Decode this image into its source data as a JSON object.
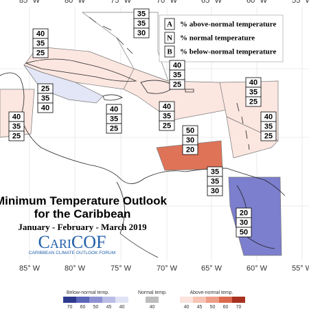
{
  "map": {
    "lon_labels": [
      "85° W",
      "80° W",
      "75° W",
      "70° W",
      "65° W",
      "60° W",
      "55° W"
    ],
    "legend": [
      {
        "key": "A",
        "label": "% above-normal temperature"
      },
      {
        "key": "N",
        "label": "% normal temperature"
      },
      {
        "key": "B",
        "label": "% below-normal temperature"
      }
    ],
    "regions": [
      {
        "values": [
          40,
          35,
          25
        ]
      },
      {
        "values": [
          35,
          35,
          30
        ]
      },
      {
        "values": [
          40,
          35,
          25
        ]
      },
      {
        "values": [
          40,
          35,
          25
        ]
      },
      {
        "values": [
          25,
          35,
          40
        ]
      },
      {
        "values": [
          40,
          35,
          25
        ]
      },
      {
        "values": [
          40,
          35,
          25
        ]
      },
      {
        "values": [
          40,
          35,
          25
        ]
      },
      {
        "values": [
          40,
          35,
          25
        ]
      },
      {
        "values": [
          50,
          30,
          20
        ]
      },
      {
        "values": [
          35,
          35,
          30
        ]
      },
      {
        "values": [
          20,
          30,
          50
        ]
      }
    ],
    "title": {
      "line1": "Minimum Temperature Outlook",
      "line2": "for the Caribbean",
      "period": "January - February - March 2019"
    },
    "logo": {
      "name": "CariCOF",
      "tagline": "CARIBBEAN CLIMATE OUTLOOK FORUM"
    },
    "colorbar": {
      "below": {
        "label": "Below-normal temp.",
        "ticks": [
          70,
          60,
          50,
          45,
          40
        ]
      },
      "normal": {
        "label": "Normal temp.",
        "ticks": [
          40
        ]
      },
      "above": {
        "label": "Above-normal temp.",
        "ticks": [
          40,
          45,
          50,
          60,
          70
        ]
      }
    }
  }
}
